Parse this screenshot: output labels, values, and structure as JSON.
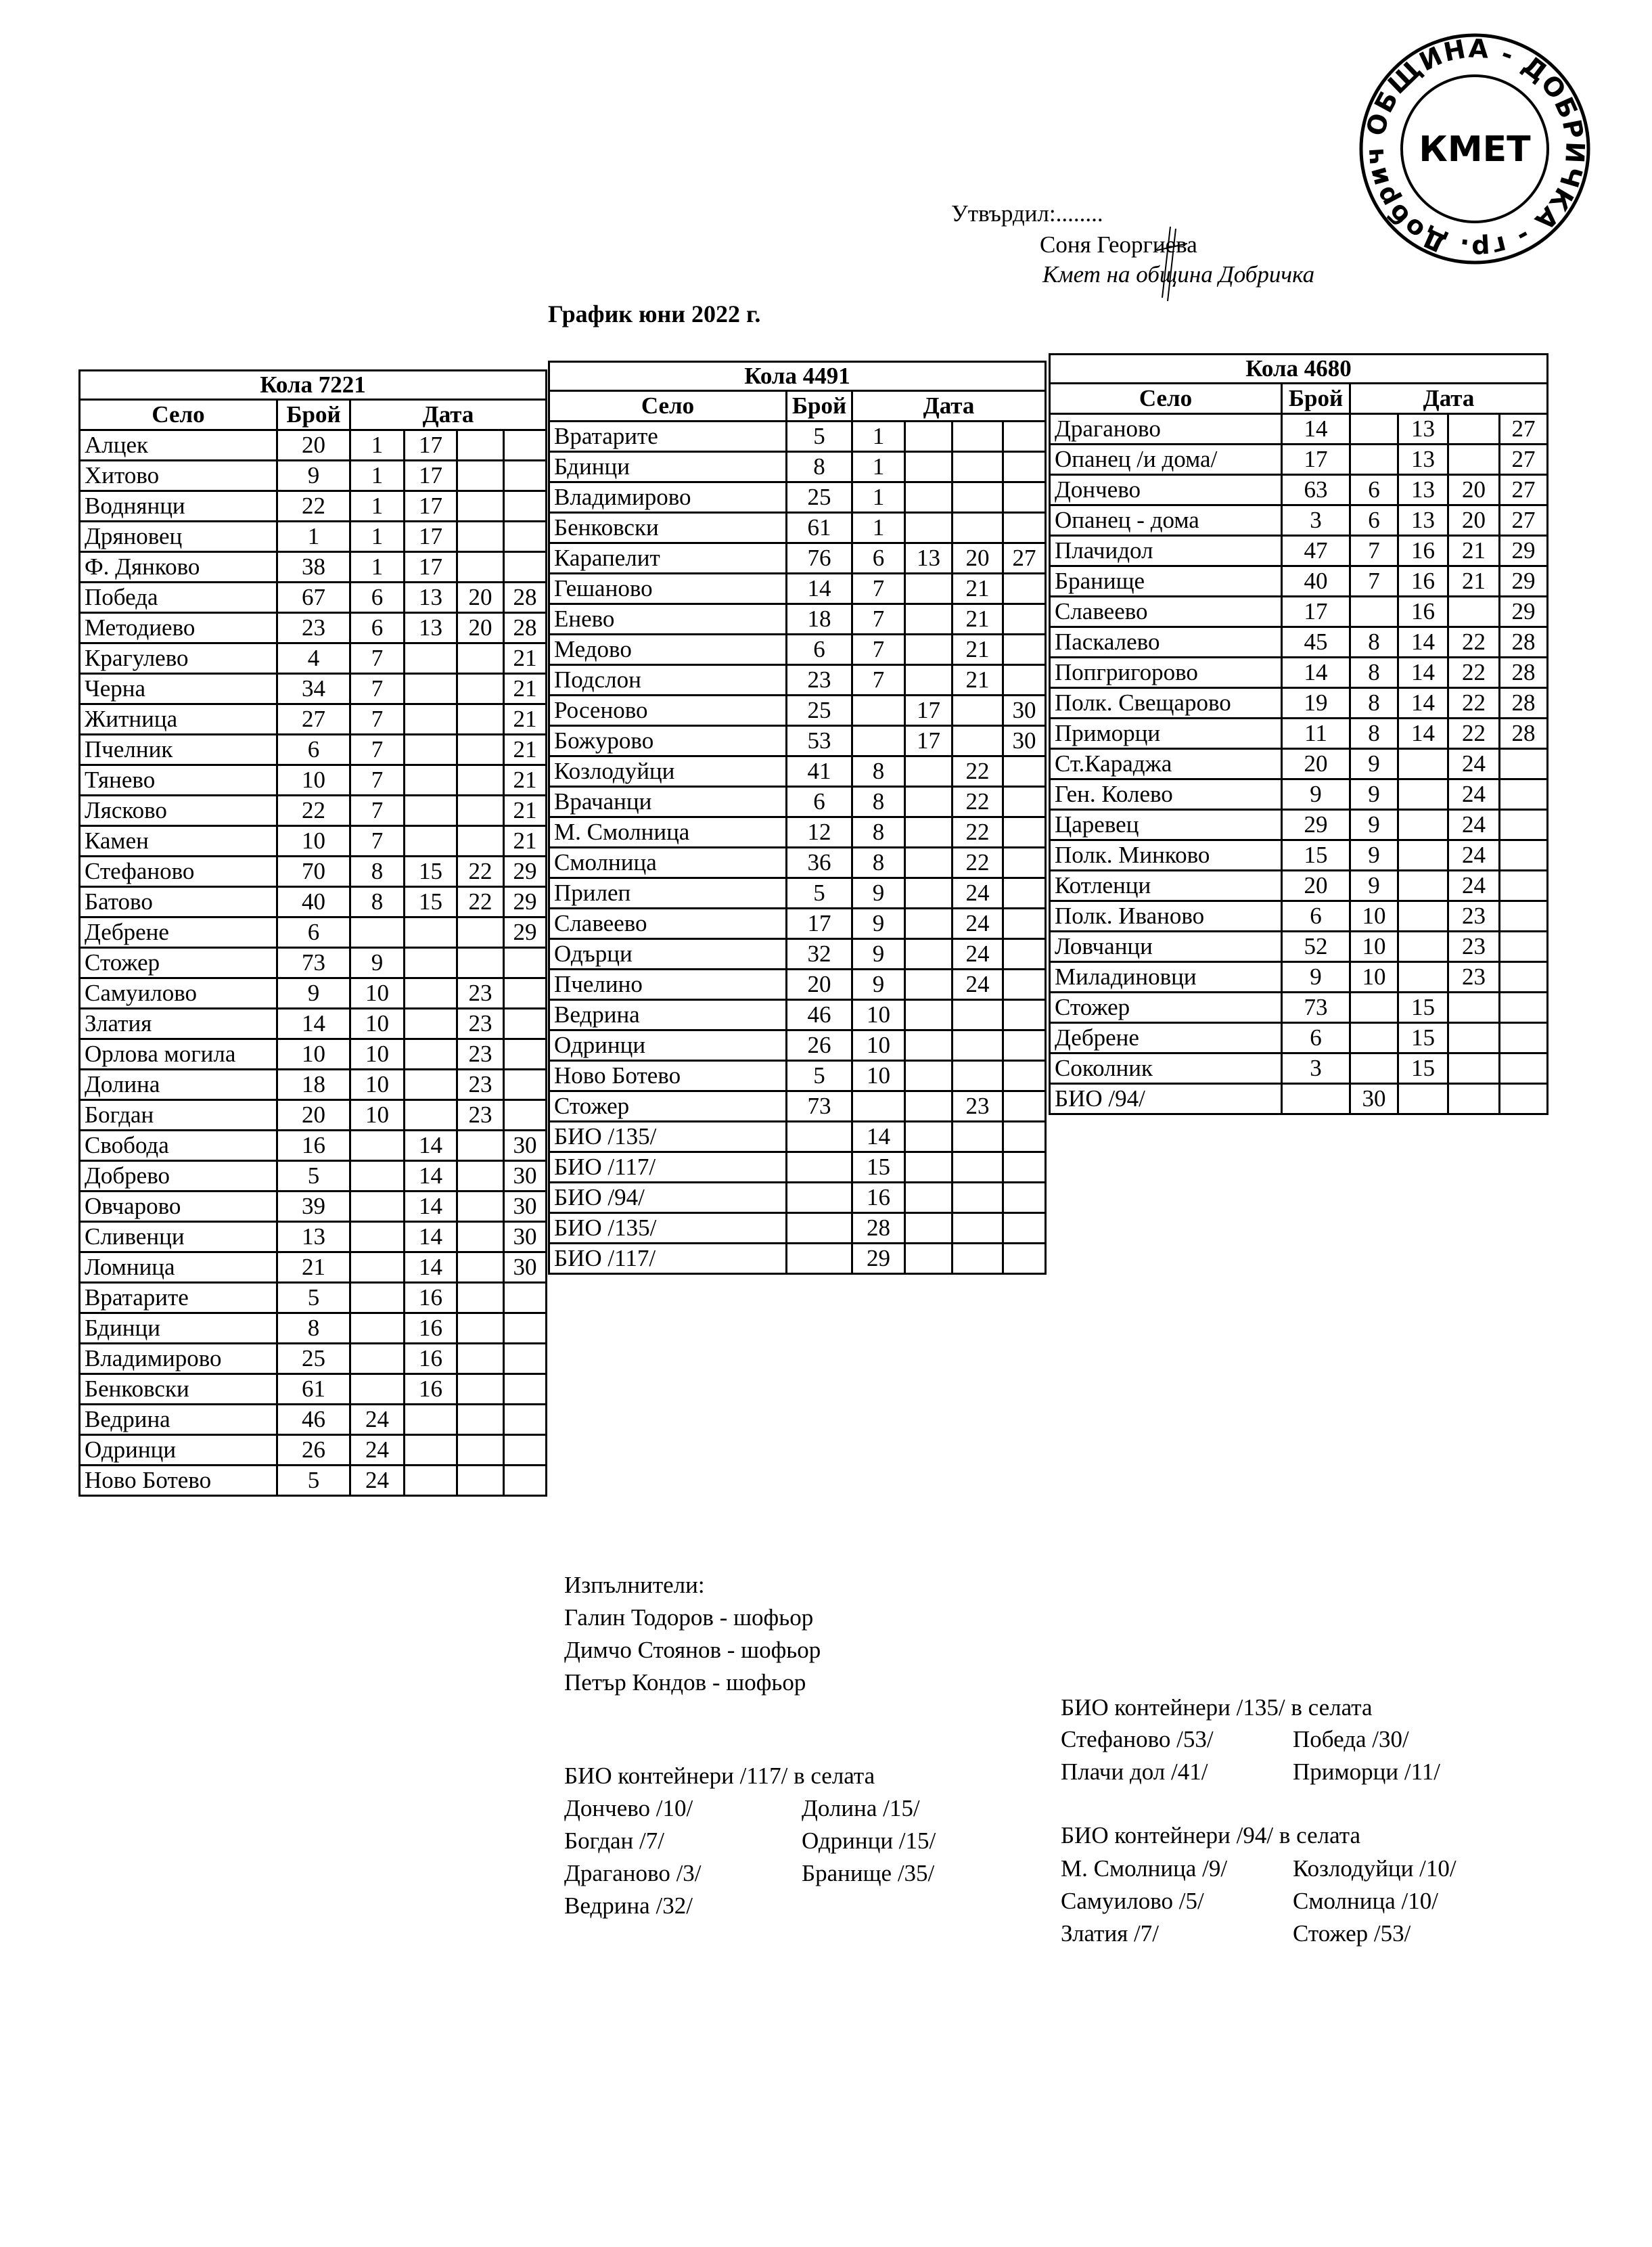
{
  "approval": {
    "approved_label": "Утвърдил:........",
    "name": "Соня Георгиева",
    "position": "Кмет  на община Добричка",
    "stamp": {
      "ring_text": "ОБЩИНА - ДОБРИЧКА - гр. Добрич",
      "center_text": "КМЕТ"
    }
  },
  "title": "График юни 2022 г.",
  "tables": [
    {
      "caption": "Кола 7221",
      "headers": {
        "village": "Село",
        "count": "Брой",
        "date": "Дата"
      },
      "rows": [
        [
          "Алцек",
          "20",
          "1",
          "17",
          "",
          ""
        ],
        [
          "Хитово",
          "9",
          "1",
          "17",
          "",
          ""
        ],
        [
          "Воднянци",
          "22",
          "1",
          "17",
          "",
          ""
        ],
        [
          "Дряновец",
          "1",
          "1",
          "17",
          "",
          ""
        ],
        [
          "Ф. Дянково",
          "38",
          "1",
          "17",
          "",
          ""
        ],
        [
          "Победа",
          "67",
          "6",
          "13",
          "20",
          "28"
        ],
        [
          "Методиево",
          "23",
          "6",
          "13",
          "20",
          "28"
        ],
        [
          "Крагулево",
          "4",
          "7",
          "",
          "",
          "21"
        ],
        [
          "Черна",
          "34",
          "7",
          "",
          "",
          "21"
        ],
        [
          "Житница",
          "27",
          "7",
          "",
          "",
          "21"
        ],
        [
          "Пчелник",
          "6",
          "7",
          "",
          "",
          "21"
        ],
        [
          "Тянево",
          "10",
          "7",
          "",
          "",
          "21"
        ],
        [
          "Лясково",
          "22",
          "7",
          "",
          "",
          "21"
        ],
        [
          "Камен",
          "10",
          "7",
          "",
          "",
          "21"
        ],
        [
          "Стефаново",
          "70",
          "8",
          "15",
          "22",
          "29"
        ],
        [
          "Батово",
          "40",
          "8",
          "15",
          "22",
          "29"
        ],
        [
          "Дебрене",
          "6",
          "",
          "",
          "",
          "29"
        ],
        [
          "Стожер",
          "73",
          "9",
          "",
          "",
          ""
        ],
        [
          "Самуилово",
          "9",
          "10",
          "",
          "23",
          ""
        ],
        [
          "Златия",
          "14",
          "10",
          "",
          "23",
          ""
        ],
        [
          "Орлова могила",
          "10",
          "10",
          "",
          "23",
          ""
        ],
        [
          "Долина",
          "18",
          "10",
          "",
          "23",
          ""
        ],
        [
          "Богдан",
          "20",
          "10",
          "",
          "23",
          ""
        ],
        [
          "Свобода",
          "16",
          "",
          "14",
          "",
          "30"
        ],
        [
          "Добрево",
          "5",
          "",
          "14",
          "",
          "30"
        ],
        [
          "Овчарово",
          "39",
          "",
          "14",
          "",
          "30"
        ],
        [
          "Сливенци",
          "13",
          "",
          "14",
          "",
          "30"
        ],
        [
          "Ломница",
          "21",
          "",
          "14",
          "",
          "30"
        ],
        [
          "Вратарите",
          "5",
          "",
          "16",
          "",
          ""
        ],
        [
          "Бдинци",
          "8",
          "",
          "16",
          "",
          ""
        ],
        [
          "Владимирово",
          "25",
          "",
          "16",
          "",
          ""
        ],
        [
          "Бенковски",
          "61",
          "",
          "16",
          "",
          ""
        ],
        [
          "Ведрина",
          "46",
          "24",
          "",
          "",
          ""
        ],
        [
          "Одринци",
          "26",
          "24",
          "",
          "",
          ""
        ],
        [
          "Ново Ботево",
          "5",
          "24",
          "",
          "",
          ""
        ]
      ]
    },
    {
      "caption": "Кола 4491",
      "headers": {
        "village": "Село",
        "count": "Брой",
        "date": "Дата"
      },
      "rows": [
        [
          "Вратарите",
          "5",
          "1",
          "",
          "",
          ""
        ],
        [
          "Бдинци",
          "8",
          "1",
          "",
          "",
          ""
        ],
        [
          "Владимирово",
          "25",
          "1",
          "",
          "",
          ""
        ],
        [
          "Бенковски",
          "61",
          "1",
          "",
          "",
          ""
        ],
        [
          "Карапелит",
          "76",
          "6",
          "13",
          "20",
          "27"
        ],
        [
          "Гешаново",
          "14",
          "7",
          "",
          "21",
          ""
        ],
        [
          "Енево",
          "18",
          "7",
          "",
          "21",
          ""
        ],
        [
          "Медово",
          "6",
          "7",
          "",
          "21",
          ""
        ],
        [
          "Подслон",
          "23",
          "7",
          "",
          "21",
          ""
        ],
        [
          "Росеново",
          "25",
          "",
          "17",
          "",
          "30"
        ],
        [
          "Божурово",
          "53",
          "",
          "17",
          "",
          "30"
        ],
        [
          "Козлодуйци",
          "41",
          "8",
          "",
          "22",
          ""
        ],
        [
          "Врачанци",
          "6",
          "8",
          "",
          "22",
          ""
        ],
        [
          "М. Смолница",
          "12",
          "8",
          "",
          "22",
          ""
        ],
        [
          "Смолница",
          "36",
          "8",
          "",
          "22",
          ""
        ],
        [
          "Прилеп",
          "5",
          "9",
          "",
          "24",
          ""
        ],
        [
          "Славеево",
          "17",
          "9",
          "",
          "24",
          ""
        ],
        [
          "Одърци",
          "32",
          "9",
          "",
          "24",
          ""
        ],
        [
          "Пчелино",
          "20",
          "9",
          "",
          "24",
          ""
        ],
        [
          "Ведрина",
          "46",
          "10",
          "",
          "",
          ""
        ],
        [
          "Одринци",
          "26",
          "10",
          "",
          "",
          ""
        ],
        [
          "Ново Ботево",
          "5",
          "10",
          "",
          "",
          ""
        ],
        [
          "Стожер",
          "73",
          "",
          "",
          "23",
          ""
        ],
        [
          "БИО /135/",
          "",
          "14",
          "",
          "",
          ""
        ],
        [
          "БИО /117/",
          "",
          "15",
          "",
          "",
          ""
        ],
        [
          "БИО /94/",
          "",
          "16",
          "",
          "",
          ""
        ],
        [
          "БИО /135/",
          "",
          "28",
          "",
          "",
          ""
        ],
        [
          "БИО /117/",
          "",
          "29",
          "",
          "",
          ""
        ]
      ]
    },
    {
      "caption": "Кола 4680",
      "headers": {
        "village": "Село",
        "count": "Брой",
        "date": "Дата"
      },
      "rows": [
        [
          "Драганово",
          "14",
          "",
          "13",
          "",
          "27"
        ],
        [
          "Опанец /и дома/",
          "17",
          "",
          "13",
          "",
          "27"
        ],
        [
          "Дончево",
          "63",
          "6",
          "13",
          "20",
          "27"
        ],
        [
          "Опанец - дома",
          "3",
          "6",
          "13",
          "20",
          "27"
        ],
        [
          "Плачидол",
          "47",
          "7",
          "16",
          "21",
          "29"
        ],
        [
          "Бранище",
          "40",
          "7",
          "16",
          "21",
          "29"
        ],
        [
          "Славеево",
          "17",
          "",
          "16",
          "",
          "29"
        ],
        [
          "Паскалево",
          "45",
          "8",
          "14",
          "22",
          "28"
        ],
        [
          "Попгригорово",
          "14",
          "8",
          "14",
          "22",
          "28"
        ],
        [
          "Полк. Свещарово",
          "19",
          "8",
          "14",
          "22",
          "28"
        ],
        [
          "Приморци",
          "11",
          "8",
          "14",
          "22",
          "28"
        ],
        [
          "Ст.Караджа",
          "20",
          "9",
          "",
          "24",
          ""
        ],
        [
          "Ген. Колево",
          "9",
          "9",
          "",
          "24",
          ""
        ],
        [
          "Царевец",
          "29",
          "9",
          "",
          "24",
          ""
        ],
        [
          "Полк. Минково",
          "15",
          "9",
          "",
          "24",
          ""
        ],
        [
          "Котленци",
          "20",
          "9",
          "",
          "24",
          ""
        ],
        [
          "Полк. Иваново",
          "6",
          "10",
          "",
          "23",
          ""
        ],
        [
          "Ловчанци",
          "52",
          "10",
          "",
          "23",
          ""
        ],
        [
          "Миладиновци",
          "9",
          "10",
          "",
          "23",
          ""
        ],
        [
          "Стожер",
          "73",
          "",
          "15",
          "",
          ""
        ],
        [
          "Дебрене",
          "6",
          "",
          "15",
          "",
          ""
        ],
        [
          "Соколник",
          "3",
          "",
          "15",
          "",
          ""
        ],
        [
          "БИО /94/",
          "",
          "30",
          "",
          "",
          ""
        ]
      ]
    }
  ],
  "executors": {
    "label": "Изпълнители:",
    "people": [
      "Галин Тодоров - шофьор",
      "Димчо Стоянов - шофьор",
      "Петър Кондов - шофьор"
    ]
  },
  "bio_117": {
    "heading": "БИО контейнери /117/ в селата",
    "col1": [
      "Дончево /10/",
      "Богдан /7/",
      "Драганово /3/",
      "Ведрина /32/"
    ],
    "col2": [
      "Долина /15/",
      "Одринци /15/",
      "Бранище /35/"
    ]
  },
  "bio_135": {
    "heading": "БИО контейнери /135/ в селата",
    "col1": [
      "Стефаново /53/",
      "Плачи дол /41/"
    ],
    "col2": [
      "Победа /30/",
      "Приморци /11/"
    ]
  },
  "bio_94": {
    "heading": "БИО контейнери /94/ в селата",
    "col1": [
      "М. Смолница /9/",
      "Самуилово /5/",
      "Златия /7/"
    ],
    "col2": [
      "Козлодуйци /10/",
      "Смолница /10/",
      "Стожер /53/"
    ]
  }
}
